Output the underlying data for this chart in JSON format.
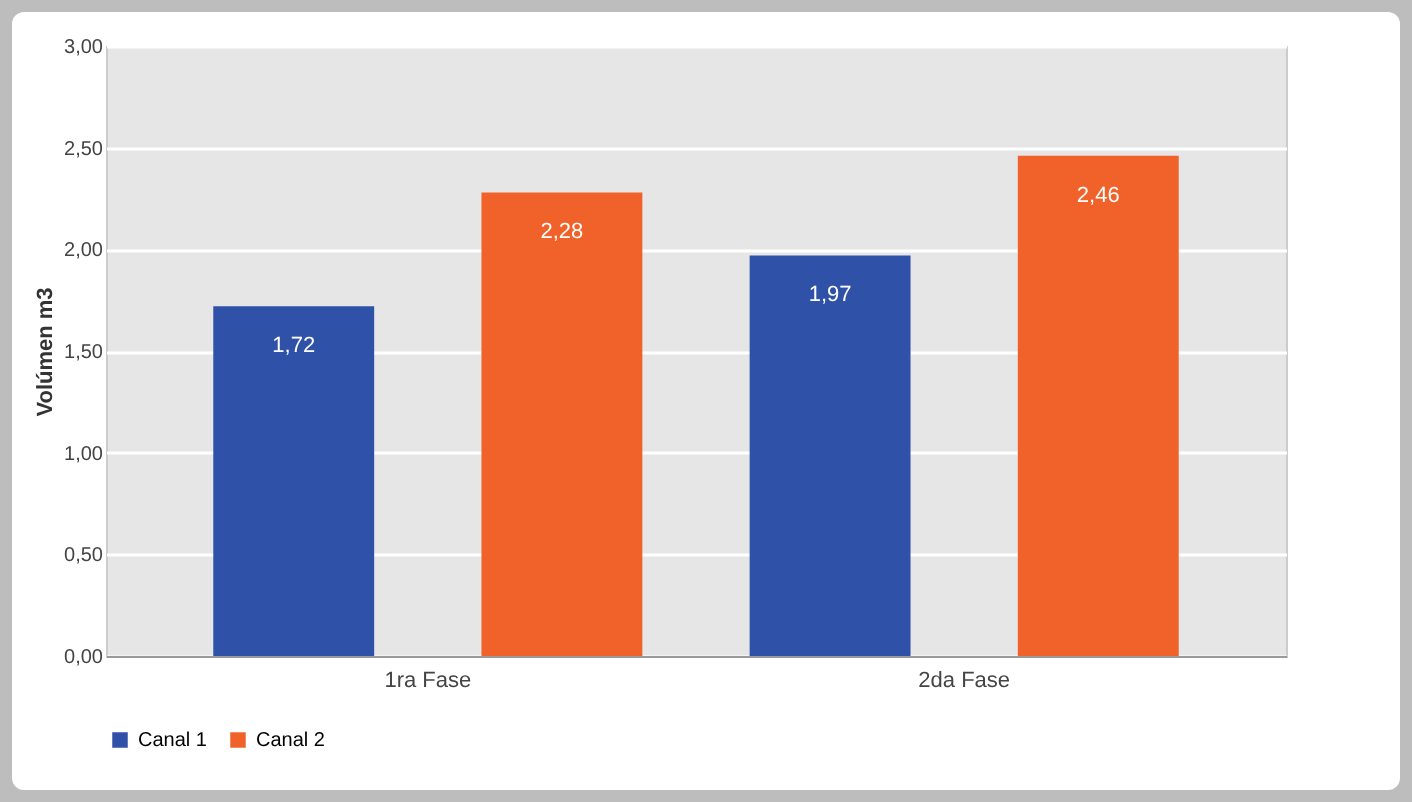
{
  "chart_data": {
    "type": "bar",
    "ylabel": "Volúmen m3",
    "categories": [
      "1ra Fase",
      "2da Fase"
    ],
    "series": [
      {
        "name": "Canal 1",
        "color": "#2f52a8",
        "values": [
          1.72,
          1.97
        ],
        "value_labels": [
          "1,72",
          "1,97"
        ]
      },
      {
        "name": "Canal 2",
        "color": "#f0622a",
        "values": [
          2.28,
          2.46
        ],
        "value_labels": [
          "2,28",
          "2,46"
        ]
      }
    ],
    "ylim": [
      0,
      3
    ],
    "yticks": [
      {
        "value": 0,
        "label": "0,00"
      },
      {
        "value": 0.5,
        "label": "0,50"
      },
      {
        "value": 1,
        "label": "1,00"
      },
      {
        "value": 1.5,
        "label": "1,50"
      },
      {
        "value": 2,
        "label": "2,00"
      },
      {
        "value": 2.5,
        "label": "2,50"
      },
      {
        "value": 3,
        "label": "3,00"
      }
    ],
    "grid": "y",
    "legend": "bottom"
  }
}
